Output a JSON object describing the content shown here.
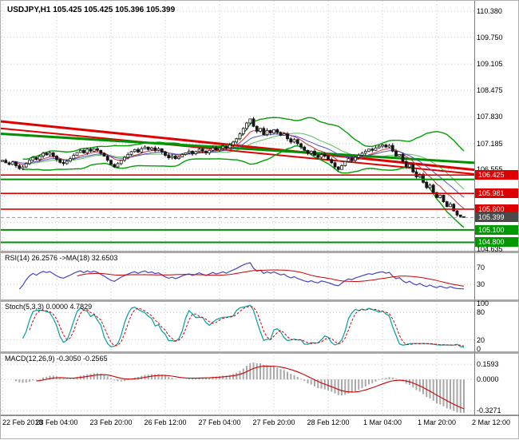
{
  "window": {
    "symbol_label": "USDJPY,H1 105.425 105.425 105.396 105.399"
  },
  "colors": {
    "grid": "#c9c9c9",
    "candle": "#161616",
    "bull_fill": "#ffffff",
    "line_red": "#e00000",
    "line_green": "#009000",
    "bb_green": "#00a000",
    "ema_fast": "#cc3333",
    "ema_slow": "#5555cc",
    "rsi_line": "#4444cc",
    "rsi_ma": "#cc0000",
    "stoch_main": "#00a0a0",
    "stoch_signal": "#d00000",
    "macd_hist": "#a8a8a8",
    "macd_signal": "#cc0000",
    "badge_red": "#dd0000",
    "badge_green": "#009900",
    "badge_gray": "#4a4a4a",
    "divider": "#a8a8a8",
    "axis_line": "#808080",
    "current_price_line": "#999999"
  },
  "price_axis": {
    "plain_labels": [
      {
        "text": "110.380",
        "price": 110.38
      },
      {
        "text": "109.750",
        "price": 109.75
      },
      {
        "text": "109.105",
        "price": 109.105
      },
      {
        "text": "108.475",
        "price": 108.475
      },
      {
        "text": "107.830",
        "price": 107.83
      },
      {
        "text": "107.185",
        "price": 107.185
      },
      {
        "text": "106.555",
        "price": 106.555
      },
      {
        "text": "104.635",
        "price": 104.635
      }
    ],
    "badges": [
      {
        "text": "106.425",
        "price": 106.425,
        "style": "red"
      },
      {
        "text": "105.981",
        "price": 105.981,
        "style": "red"
      },
      {
        "text": "105.600",
        "price": 105.6,
        "style": "red"
      },
      {
        "text": "105.399",
        "price": 105.399,
        "style": "gray"
      },
      {
        "text": "105.100",
        "price": 105.1,
        "style": "green"
      },
      {
        "text": "104.800",
        "price": 104.8,
        "style": "green"
      }
    ]
  },
  "time_axis": {
    "labels": [
      "22 Feb 2018",
      "23 Feb 04:00",
      "23 Feb 20:00",
      "26 Feb 12:00",
      "27 Feb 04:00",
      "27 Feb 20:00",
      "28 Feb 12:00",
      "1 Mar 04:00",
      "1 Mar 20:00",
      "2 Mar 12:00"
    ],
    "bars_per_label": 16
  },
  "panes": {
    "rsi": {
      "label": "RSI(14) 26.2576 ->MA(18) 32.6503",
      "levels": [
        {
          "text": "70",
          "value": 70
        },
        {
          "text": "30",
          "value": 30
        }
      ]
    },
    "stoch": {
      "label": "Stoch(5,3,3) 0.0000 4.7829",
      "levels": [
        {
          "text": "100",
          "value": 100
        },
        {
          "text": "80",
          "value": 80
        },
        {
          "text": "20",
          "value": 20
        },
        {
          "text": "0",
          "value": 0
        }
      ]
    },
    "macd": {
      "label": "MACD(12,26,9) -0.3050 -0.2565",
      "levels": [
        {
          "text": "0.1593",
          "value": 0.1593
        },
        {
          "text": "0.0000",
          "value": 0
        },
        {
          "text": "-0.3271",
          "value": -0.3271
        }
      ]
    }
  },
  "chart_data": {
    "type": "candlestick",
    "symbol": "USDJPY",
    "timeframe": "H1",
    "quote": {
      "open": "105.425",
      "high": "105.425",
      "low": "105.396",
      "close": "105.399"
    },
    "y_range": [
      104.635,
      110.38
    ],
    "price_gridlines": [
      110.38,
      109.75,
      109.105,
      108.475,
      107.83,
      107.185,
      106.555,
      105.91,
      105.275,
      104.635
    ],
    "open_first": 106.75,
    "closes": [
      106.78,
      106.72,
      106.68,
      106.74,
      106.65,
      106.58,
      106.62,
      106.7,
      106.78,
      106.85,
      106.8,
      106.88,
      106.95,
      106.91,
      106.96,
      106.88,
      106.8,
      106.73,
      106.7,
      106.76,
      106.82,
      106.9,
      106.97,
      107.02,
      106.96,
      107.05,
      107.0,
      107.06,
      107.02,
      106.95,
      106.88,
      106.78,
      106.68,
      106.62,
      106.7,
      106.78,
      106.85,
      106.92,
      106.99,
      107.04,
      106.98,
      107.06,
      107.1,
      107.04,
      107.08,
      107.02,
      107.06,
      106.98,
      106.9,
      106.84,
      106.88,
      106.82,
      106.86,
      106.92,
      106.96,
      107.0,
      106.94,
      106.99,
      107.05,
      107.0,
      106.96,
      107.02,
      107.08,
      107.03,
      107.07,
      107.12,
      107.08,
      107.15,
      107.22,
      107.3,
      107.42,
      107.55,
      107.68,
      107.78,
      107.6,
      107.48,
      107.55,
      107.4,
      107.5,
      107.44,
      107.52,
      107.45,
      107.38,
      107.42,
      107.3,
      107.22,
      107.28,
      107.18,
      107.1,
      107.02,
      106.95,
      107.0,
      106.9,
      106.85,
      106.92,
      106.88,
      106.8,
      106.72,
      106.62,
      106.56,
      106.65,
      106.75,
      106.82,
      106.78,
      106.85,
      106.9,
      106.95,
      107.0,
      107.05,
      107.02,
      107.08,
      107.12,
      107.15,
      107.1,
      107.14,
      107.0,
      106.88,
      106.92,
      106.75,
      106.62,
      106.68,
      106.5,
      106.38,
      106.44,
      106.25,
      106.12,
      106.18,
      106.0,
      105.88,
      105.94,
      105.78,
      105.66,
      105.72,
      105.56,
      105.46,
      105.42,
      105.4
    ],
    "horizontal_lines": [
      {
        "price": 106.425,
        "color": "red"
      },
      {
        "price": 105.981,
        "color": "red"
      },
      {
        "price": 105.6,
        "color": "red"
      },
      {
        "price": 106.32,
        "color": "green"
      },
      {
        "price": 105.1,
        "color": "green"
      },
      {
        "price": 104.8,
        "color": "green"
      }
    ],
    "trendlines": [
      {
        "from_price": 107.72,
        "to_price": 106.55,
        "color": "red",
        "width": 3
      },
      {
        "from_price": 107.55,
        "to_price": 106.45,
        "color": "red",
        "width": 2
      },
      {
        "from_price": 107.42,
        "to_price": 106.72,
        "color": "green",
        "width": 3
      }
    ],
    "indicators": {
      "bollinger": {
        "period": 20,
        "deviation": 2
      },
      "rsi": {
        "period": 14,
        "value": 26.2576,
        "ma_period": 18,
        "ma_value": 32.6503
      },
      "stoch": {
        "k": 5,
        "d": 3,
        "slowing": 3,
        "main": 0.0,
        "signal": 4.7829
      },
      "macd": {
        "fast": 12,
        "slow": 26,
        "signal": 9,
        "main": -0.305,
        "signal_value": -0.2565
      }
    }
  }
}
